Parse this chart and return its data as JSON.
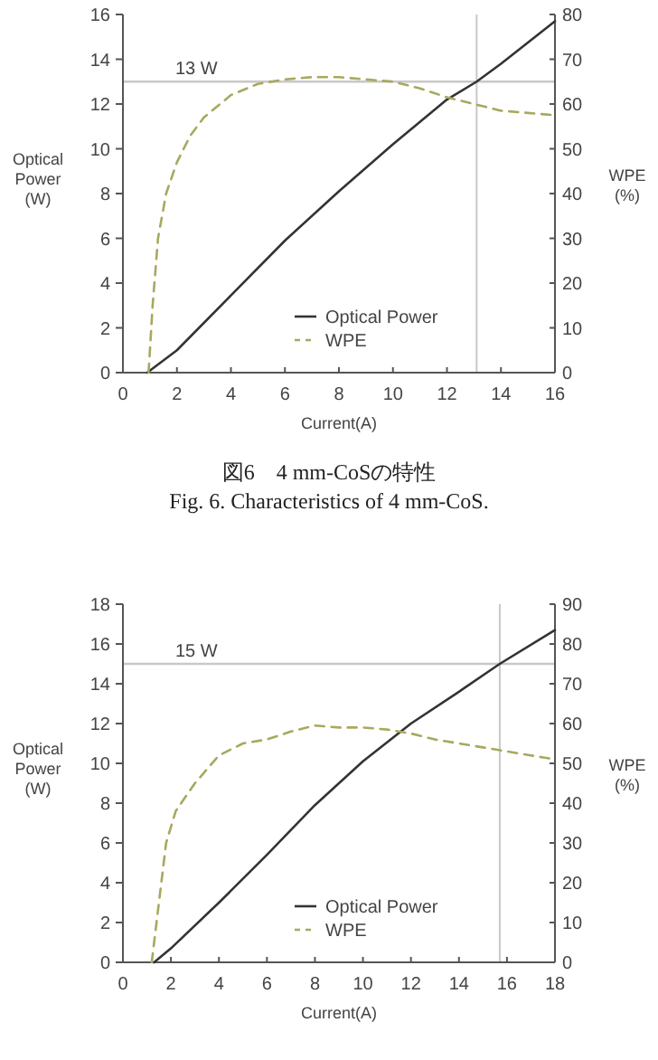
{
  "chart_data": [
    {
      "type": "line",
      "xlabel": "Current(A)",
      "ylabel": "Optical Power (W)",
      "y2label": "WPE (%)",
      "xlim": [
        0,
        16
      ],
      "xticks": [
        0,
        2,
        4,
        6,
        8,
        10,
        12,
        14,
        16
      ],
      "ylim": [
        0,
        16
      ],
      "yticks": [
        0,
        2,
        4,
        6,
        8,
        10,
        12,
        14,
        16
      ],
      "y2lim": [
        0,
        80
      ],
      "y2ticks": [
        0,
        10,
        20,
        30,
        40,
        50,
        60,
        70,
        80
      ],
      "grid": false,
      "legend": "bottom right",
      "series": [
        {
          "name": "Optical Power",
          "color": "#333333",
          "line_style": "solid",
          "x": [
            0.9,
            2,
            4,
            6,
            8,
            10,
            12,
            13.1,
            14,
            16
          ],
          "values": [
            0,
            1.0,
            3.45,
            5.9,
            8.1,
            10.2,
            12.2,
            13,
            13.8,
            15.7
          ]
        },
        {
          "name": "WPE",
          "color": "#a8a860",
          "line_style": "dashed",
          "axis": "y2",
          "x": [
            0.95,
            1.1,
            1.3,
            1.6,
            2,
            2.5,
            3,
            4,
            5,
            6,
            7,
            8,
            9,
            10,
            11,
            12,
            13,
            14,
            15,
            16
          ],
          "values": [
            0,
            15,
            30,
            40,
            47,
            53,
            57,
            62,
            64.5,
            65.5,
            66,
            66,
            65.5,
            65,
            63.5,
            61.5,
            60,
            58.5,
            58,
            57.5
          ]
        }
      ],
      "ref_lines": [
        {
          "axis": "y",
          "value": 13,
          "label": "13 W",
          "color": "#c8c8c8"
        },
        {
          "axis": "x",
          "value": 13.1,
          "color": "#c8c8c8"
        }
      ],
      "annotations": [
        "図6　4 mm-CoSの特性",
        "Fig. 6. Characteristics of 4 mm-CoS."
      ]
    },
    {
      "type": "line",
      "xlabel": "Current(A)",
      "ylabel": "Optical Power (W)",
      "y2label": "WPE (%)",
      "xlim": [
        0,
        18
      ],
      "xticks": [
        0,
        2,
        4,
        6,
        8,
        10,
        12,
        14,
        16,
        18
      ],
      "ylim": [
        0,
        18
      ],
      "yticks": [
        0,
        2,
        4,
        6,
        8,
        10,
        12,
        14,
        16,
        18
      ],
      "y2lim": [
        0,
        90
      ],
      "y2ticks": [
        0,
        10,
        20,
        30,
        40,
        50,
        60,
        70,
        80,
        90
      ],
      "grid": false,
      "legend": "bottom right",
      "series": [
        {
          "name": "Optical Power",
          "color": "#333333",
          "line_style": "solid",
          "x": [
            1.3,
            2,
            4,
            6,
            8,
            10,
            12,
            14,
            15.7,
            18
          ],
          "values": [
            0,
            0.7,
            3.0,
            5.4,
            7.9,
            10.1,
            12.0,
            13.6,
            15,
            16.7
          ]
        },
        {
          "name": "WPE",
          "color": "#a8a860",
          "line_style": "dashed",
          "axis": "y2",
          "x": [
            1.2,
            1.5,
            1.8,
            2.2,
            3,
            4,
            5,
            6,
            7,
            8,
            9,
            10,
            11,
            12,
            13,
            14,
            15,
            16,
            17,
            18
          ],
          "values": [
            0,
            15,
            30,
            38,
            45,
            52,
            55,
            56,
            58,
            59.5,
            59,
            59,
            58.5,
            57.5,
            56,
            55,
            54,
            53,
            52,
            51
          ]
        }
      ],
      "ref_lines": [
        {
          "axis": "y",
          "value": 15,
          "label": "15 W",
          "color": "#c8c8c8"
        },
        {
          "axis": "x",
          "value": 15.7,
          "color": "#c8c8c8"
        }
      ]
    }
  ]
}
